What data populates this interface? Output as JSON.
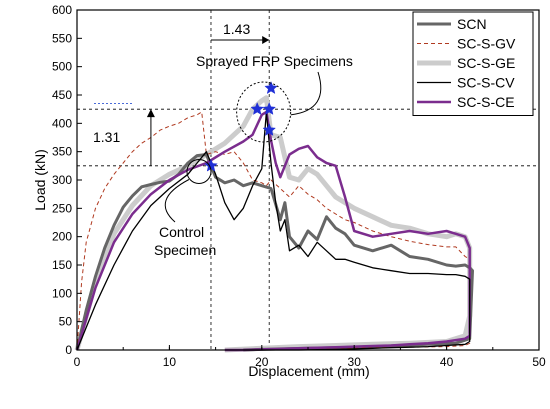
{
  "chart_data": {
    "type": "line",
    "xlabel": "Displacement (mm)",
    "ylabel": "Load (kN)",
    "xlim": [
      0,
      50
    ],
    "ylim": [
      0,
      600
    ],
    "xticks": [
      0,
      10,
      20,
      30,
      40,
      50
    ],
    "yticks": [
      0,
      50,
      100,
      150,
      200,
      250,
      300,
      350,
      400,
      450,
      500,
      550,
      600
    ],
    "legend_position": "top-right",
    "series": [
      {
        "name": "SCN",
        "color": "#666666",
        "width": 3,
        "dash": "",
        "x": [
          0,
          1,
          2,
          3,
          4,
          5,
          6,
          7,
          8,
          9,
          10,
          11,
          12,
          13,
          14,
          15,
          16,
          17,
          18,
          19,
          20,
          21,
          22,
          22.5,
          23,
          24,
          25,
          26,
          27,
          28,
          29,
          30,
          32,
          34,
          36,
          38,
          40,
          41,
          42,
          42.5,
          42.8,
          42.5,
          41,
          38,
          35,
          32,
          30,
          28,
          25,
          22,
          20,
          18
        ],
        "y": [
          0,
          70,
          130,
          180,
          220,
          252,
          272,
          288,
          292,
          296,
          298,
          310,
          330,
          343,
          345,
          305,
          295,
          300,
          290,
          295,
          290,
          285,
          230,
          260,
          200,
          180,
          210,
          195,
          235,
          215,
          205,
          185,
          175,
          185,
          165,
          160,
          150,
          148,
          150,
          145,
          140,
          20,
          12,
          10,
          8,
          6,
          5,
          4,
          3,
          2,
          1,
          0
        ]
      },
      {
        "name": "SC-S-GV",
        "color": "#b03a20",
        "width": 1,
        "dash": "4,3",
        "x": [
          0,
          0.5,
          1,
          2,
          3,
          4,
          5,
          6,
          7,
          8,
          9,
          10,
          11,
          12,
          13,
          13.5,
          14,
          15,
          16,
          17,
          18,
          19,
          20,
          20.5,
          21,
          22,
          23,
          24,
          25,
          26,
          27,
          28,
          29,
          30,
          32,
          34,
          36,
          38,
          40,
          41,
          42,
          42.5,
          42.5,
          42,
          40,
          36,
          32,
          28,
          25,
          22,
          20
        ],
        "y": [
          0,
          120,
          190,
          250,
          285,
          310,
          330,
          350,
          365,
          375,
          388,
          395,
          400,
          410,
          415,
          420,
          345,
          350,
          345,
          350,
          330,
          300,
          295,
          290,
          300,
          285,
          270,
          290,
          275,
          265,
          250,
          240,
          230,
          225,
          210,
          200,
          192,
          186,
          182,
          182,
          165,
          160,
          12,
          8,
          6,
          5,
          4,
          3,
          2,
          1,
          0
        ]
      },
      {
        "name": "SC-S-GE",
        "color": "#cccccc",
        "width": 5,
        "dash": "",
        "x": [
          0,
          2,
          4,
          6,
          8,
          10,
          12,
          14,
          16,
          18,
          19,
          20,
          20.5,
          21,
          22,
          23,
          24,
          25,
          26,
          27,
          28,
          30,
          32,
          34,
          36,
          38,
          40,
          41,
          42,
          42.5,
          42.5,
          42,
          40,
          36,
          32,
          28,
          24,
          20,
          16
        ],
        "y": [
          0,
          120,
          205,
          255,
          290,
          310,
          325,
          345,
          365,
          395,
          425,
          440,
          445,
          380,
          375,
          305,
          300,
          320,
          310,
          290,
          270,
          250,
          235,
          220,
          215,
          205,
          200,
          205,
          200,
          180,
          60,
          25,
          15,
          12,
          10,
          8,
          6,
          3,
          0
        ]
      },
      {
        "name": "SC-S-CV",
        "color": "#000000",
        "width": 1.3,
        "dash": "",
        "x": [
          0,
          2,
          4,
          6,
          8,
          10,
          12,
          13,
          14,
          15,
          16,
          17,
          18,
          19,
          20,
          20.5,
          21,
          21.5,
          22,
          22.5,
          23,
          24,
          25,
          26,
          27,
          28,
          29,
          30,
          32,
          34,
          36,
          38,
          40,
          41,
          42,
          42.5,
          42.5,
          42,
          40,
          38,
          36,
          34,
          32,
          30,
          28,
          26,
          24,
          22,
          20,
          18
        ],
        "y": [
          0,
          80,
          150,
          210,
          255,
          285,
          310,
          330,
          350,
          310,
          260,
          230,
          250,
          290,
          320,
          420,
          330,
          260,
          210,
          230,
          175,
          185,
          165,
          190,
          175,
          160,
          160,
          155,
          145,
          140,
          135,
          135,
          133,
          133,
          130,
          125,
          15,
          10,
          8,
          6,
          5,
          4,
          3,
          2,
          1,
          0.5,
          0,
          0,
          0,
          0
        ]
      },
      {
        "name": "SC-S-CE",
        "color": "#7b2d8e",
        "width": 2.5,
        "dash": "",
        "x": [
          0,
          2,
          4,
          6,
          8,
          10,
          12,
          14,
          16,
          18,
          19,
          20,
          20.5,
          21,
          21.5,
          22,
          23,
          24,
          25,
          26,
          27,
          28,
          29,
          30,
          32,
          34,
          36,
          38,
          40,
          41,
          42,
          42.5,
          42.5,
          42,
          40,
          38,
          36,
          34,
          32,
          30,
          28,
          26,
          24,
          22,
          20,
          18,
          16
        ],
        "y": [
          0,
          110,
          190,
          240,
          275,
          300,
          318,
          330,
          350,
          368,
          380,
          415,
          420,
          370,
          330,
          305,
          345,
          355,
          360,
          340,
          330,
          325,
          270,
          210,
          200,
          205,
          210,
          205,
          210,
          205,
          200,
          180,
          25,
          20,
          15,
          12,
          10,
          8,
          7,
          6,
          5,
          4,
          3,
          2,
          1,
          0,
          0
        ]
      }
    ],
    "stars": [
      {
        "x": 21,
        "y": 462
      },
      {
        "x": 19.5,
        "y": 425
      },
      {
        "x": 20.8,
        "y": 425
      },
      {
        "x": 20.8,
        "y": 388
      },
      {
        "x": 14.5,
        "y": 325
      }
    ],
    "annotations": {
      "ratio_top": "1.43",
      "ratio_left": "1.31",
      "sprayed_label": "Sprayed FRP Specimens",
      "control_label_line1": "Control",
      "control_label_line2": "Specimen"
    },
    "reference_lines": {
      "x": [
        14.5,
        20.8
      ],
      "y": [
        325,
        425
      ]
    }
  }
}
